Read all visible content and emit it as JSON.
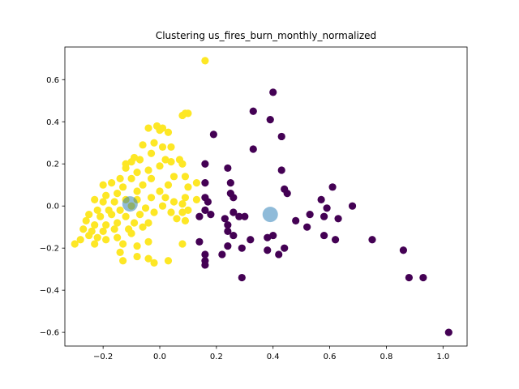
{
  "chart_data": {
    "type": "scatter",
    "title": "Clustering us_fires_burn_monthly_normalized",
    "xlabel": "",
    "ylabel": "",
    "xlim": [
      -0.335,
      1.085
    ],
    "ylim": [
      -0.665,
      0.755
    ],
    "xticks": [
      -0.2,
      0.0,
      0.2,
      0.4,
      0.6,
      0.8,
      1.0
    ],
    "xtick_labels": [
      "−0.2",
      "0.0",
      "0.2",
      "0.4",
      "0.6",
      "0.8",
      "1.0"
    ],
    "yticks": [
      -0.6,
      -0.4,
      -0.2,
      0.0,
      0.2,
      0.4,
      0.6
    ],
    "ytick_labels": [
      "−0.6",
      "−0.4",
      "−0.2",
      "0.0",
      "0.2",
      "0.4",
      "0.6"
    ],
    "grid": false,
    "legend": "none",
    "colors": {
      "cluster_0": "#440154",
      "cluster_1": "#fde725",
      "centroid": "#1f77b4"
    },
    "series": [
      {
        "cluster": 0,
        "points": [
          [
            0.4,
            0.54
          ],
          [
            0.33,
            0.45
          ],
          [
            0.39,
            0.41
          ],
          [
            0.43,
            0.33
          ],
          [
            0.19,
            0.34
          ],
          [
            0.33,
            0.27
          ],
          [
            0.16,
            0.2
          ],
          [
            0.24,
            0.18
          ],
          [
            0.43,
            0.17
          ],
          [
            0.16,
            0.11
          ],
          [
            0.25,
            0.11
          ],
          [
            0.61,
            0.09
          ],
          [
            0.44,
            0.08
          ],
          [
            0.25,
            0.06
          ],
          [
            0.45,
            0.06
          ],
          [
            0.26,
            0.04
          ],
          [
            0.16,
            0.04
          ],
          [
            0.57,
            0.03
          ],
          [
            0.17,
            0.02
          ],
          [
            0.68,
            0.0
          ],
          [
            0.59,
            -0.01
          ],
          [
            0.16,
            -0.02
          ],
          [
            0.14,
            -0.05
          ],
          [
            0.18,
            -0.04
          ],
          [
            0.26,
            -0.03
          ],
          [
            0.28,
            -0.05
          ],
          [
            0.3,
            -0.05
          ],
          [
            0.23,
            -0.06
          ],
          [
            0.24,
            -0.09
          ],
          [
            0.48,
            -0.07
          ],
          [
            0.53,
            -0.04
          ],
          [
            0.58,
            -0.05
          ],
          [
            0.63,
            -0.06
          ],
          [
            0.24,
            -0.12
          ],
          [
            0.26,
            -0.14
          ],
          [
            0.38,
            -0.15
          ],
          [
            0.4,
            -0.14
          ],
          [
            0.52,
            -0.1
          ],
          [
            0.58,
            -0.14
          ],
          [
            0.62,
            -0.16
          ],
          [
            0.75,
            -0.16
          ],
          [
            0.14,
            -0.17
          ],
          [
            0.24,
            -0.19
          ],
          [
            0.32,
            -0.16
          ],
          [
            0.29,
            -0.2
          ],
          [
            0.44,
            -0.2
          ],
          [
            0.38,
            -0.21
          ],
          [
            0.42,
            -0.23
          ],
          [
            0.16,
            -0.23
          ],
          [
            0.22,
            -0.23
          ],
          [
            0.16,
            -0.26
          ],
          [
            0.16,
            -0.28
          ],
          [
            0.29,
            -0.34
          ],
          [
            0.86,
            -0.21
          ],
          [
            0.88,
            -0.34
          ],
          [
            0.93,
            -0.34
          ],
          [
            1.02,
            -0.6
          ]
        ]
      },
      {
        "cluster": 1,
        "points": [
          [
            0.16,
            0.69
          ],
          [
            0.09,
            0.44
          ],
          [
            0.1,
            0.44
          ],
          [
            0.08,
            0.43
          ],
          [
            -0.04,
            0.37
          ],
          [
            -0.01,
            0.38
          ],
          [
            0.0,
            0.36
          ],
          [
            0.01,
            0.37
          ],
          [
            0.03,
            0.35
          ],
          [
            -0.06,
            0.29
          ],
          [
            -0.02,
            0.3
          ],
          [
            0.01,
            0.28
          ],
          [
            0.04,
            0.28
          ],
          [
            -0.03,
            0.25
          ],
          [
            0.02,
            0.22
          ],
          [
            0.04,
            0.21
          ],
          [
            0.07,
            0.22
          ],
          [
            -0.09,
            0.23
          ],
          [
            -0.07,
            0.22
          ],
          [
            -0.12,
            0.2
          ],
          [
            -0.1,
            0.21
          ],
          [
            0.08,
            0.2
          ],
          [
            0.0,
            0.19
          ],
          [
            -0.04,
            0.17
          ],
          [
            -0.08,
            0.16
          ],
          [
            -0.12,
            0.18
          ],
          [
            0.09,
            0.14
          ],
          [
            0.05,
            0.14
          ],
          [
            -0.03,
            0.13
          ],
          [
            -0.1,
            0.13
          ],
          [
            -0.14,
            0.13
          ],
          [
            -0.17,
            0.11
          ],
          [
            -0.2,
            0.1
          ],
          [
            -0.13,
            0.09
          ],
          [
            -0.06,
            0.1
          ],
          [
            0.03,
            0.1
          ],
          [
            0.13,
            0.11
          ],
          [
            0.1,
            0.09
          ],
          [
            0.0,
            0.07
          ],
          [
            -0.08,
            0.07
          ],
          [
            -0.15,
            0.06
          ],
          [
            -0.19,
            0.05
          ],
          [
            -0.23,
            0.03
          ],
          [
            -0.2,
            0.02
          ],
          [
            -0.16,
            0.02
          ],
          [
            -0.12,
            0.03
          ],
          [
            -0.08,
            0.03
          ],
          [
            -0.03,
            0.04
          ],
          [
            0.02,
            0.04
          ],
          [
            0.09,
            0.04
          ],
          [
            0.13,
            0.03
          ],
          [
            0.08,
            0.01
          ],
          [
            0.05,
            0.02
          ],
          [
            0.01,
            0.0
          ],
          [
            -0.05,
            -0.01
          ],
          [
            -0.1,
            0.0
          ],
          [
            -0.14,
            -0.02
          ],
          [
            -0.18,
            -0.02
          ],
          [
            -0.22,
            -0.02
          ],
          [
            -0.25,
            -0.04
          ],
          [
            -0.21,
            -0.05
          ],
          [
            -0.17,
            -0.04
          ],
          [
            -0.12,
            -0.05
          ],
          [
            -0.07,
            -0.04
          ],
          [
            -0.02,
            -0.03
          ],
          [
            0.04,
            -0.03
          ],
          [
            0.08,
            -0.03
          ],
          [
            0.1,
            -0.02
          ],
          [
            0.06,
            -0.06
          ],
          [
            0.09,
            -0.07
          ],
          [
            -0.04,
            -0.08
          ],
          [
            -0.09,
            -0.08
          ],
          [
            -0.15,
            -0.08
          ],
          [
            -0.19,
            -0.09
          ],
          [
            -0.23,
            -0.09
          ],
          [
            -0.26,
            -0.07
          ],
          [
            -0.27,
            -0.11
          ],
          [
            -0.24,
            -0.12
          ],
          [
            -0.2,
            -0.12
          ],
          [
            -0.16,
            -0.11
          ],
          [
            -0.11,
            -0.11
          ],
          [
            -0.06,
            -0.1
          ],
          [
            -0.1,
            -0.13
          ],
          [
            -0.15,
            -0.15
          ],
          [
            -0.19,
            -0.16
          ],
          [
            -0.22,
            -0.15
          ],
          [
            -0.25,
            -0.14
          ],
          [
            -0.28,
            -0.16
          ],
          [
            -0.3,
            -0.18
          ],
          [
            -0.23,
            -0.18
          ],
          [
            -0.13,
            -0.18
          ],
          [
            -0.08,
            -0.19
          ],
          [
            -0.04,
            -0.17
          ],
          [
            0.08,
            -0.18
          ],
          [
            -0.14,
            -0.22
          ],
          [
            -0.08,
            -0.24
          ],
          [
            -0.04,
            -0.25
          ],
          [
            -0.02,
            -0.27
          ],
          [
            0.03,
            -0.26
          ],
          [
            -0.13,
            -0.26
          ]
        ]
      }
    ],
    "centroids": [
      {
        "cluster": 0,
        "x": 0.39,
        "y": -0.04
      },
      {
        "cluster": 1,
        "x": -0.105,
        "y": 0.01
      }
    ]
  }
}
